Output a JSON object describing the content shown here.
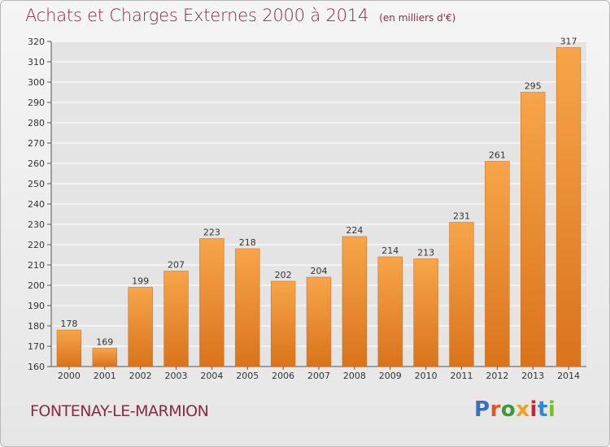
{
  "header": {
    "title": "Achats et Charges Externes 2000 à 2014",
    "subtitle": "(en milliers d'€)"
  },
  "footer": {
    "place": "FONTENAY-LE-MARMION",
    "logo_text": "Proxiti"
  },
  "colors": {
    "title": "#8b2a45",
    "bar_light": "#f7a54a",
    "bar_dark": "#d9731c",
    "grid": "#ffffff",
    "logo": [
      "#3a6fc2",
      "#e8502a",
      "#3a9a3a",
      "#f1a11b",
      "#c8262d",
      "#2b8ad6",
      "#7bbf2a"
    ]
  },
  "chart_data": {
    "type": "bar",
    "title": "Achats et Charges Externes 2000 à 2014",
    "subtitle": "(en milliers d'€)",
    "categories": [
      "2000",
      "2001",
      "2002",
      "2003",
      "2004",
      "2005",
      "2006",
      "2007",
      "2008",
      "2009",
      "2010",
      "2011",
      "2012",
      "2013",
      "2014"
    ],
    "values": [
      178,
      169,
      199,
      207,
      223,
      218,
      202,
      204,
      224,
      214,
      213,
      231,
      261,
      295,
      317
    ],
    "ylim": [
      160,
      320
    ],
    "yticks": [
      160,
      170,
      180,
      190,
      200,
      210,
      220,
      230,
      240,
      250,
      260,
      270,
      280,
      290,
      300,
      310,
      320
    ],
    "grid": true,
    "xlabel": "",
    "ylabel": ""
  }
}
